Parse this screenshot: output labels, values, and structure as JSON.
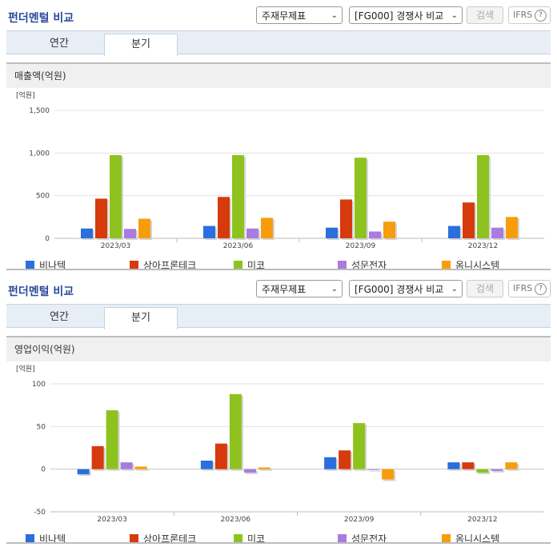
{
  "panels": [
    {
      "title": "펀더멘털 비교",
      "select1": "주재무제표",
      "select2": "[FG000] 경쟁사 비교",
      "search_btn": "검색",
      "ifrs": "IFRS",
      "ifrs_help": "?",
      "tabs": [
        "연간",
        "분기"
      ],
      "active_tab": 1,
      "metric_title": "매출액(억원)"
    },
    {
      "title": "펀더멘털 비교",
      "select1": "주재무제표",
      "select2": "[FG000] 경쟁사 비교",
      "search_btn": "검색",
      "ifrs": "IFRS",
      "ifrs_help": "?",
      "tabs": [
        "연간",
        "분기"
      ],
      "active_tab": 1,
      "metric_title": "영업이익(억원)"
    }
  ],
  "chart_data": [
    {
      "type": "bar",
      "unit_label": "[억원]",
      "categories": [
        "2023/03",
        "2023/06",
        "2023/09",
        "2023/12"
      ],
      "ylim": [
        0,
        1500
      ],
      "yticks": [
        0,
        500,
        1000,
        1500
      ],
      "ytick_labels": [
        "0",
        "500",
        "1,000",
        "1,500"
      ],
      "grid": true,
      "legend_position": "bottom",
      "series": [
        {
          "name": "비나텍",
          "color": "#2a6fdb",
          "values": [
            115,
            145,
            125,
            145
          ]
        },
        {
          "name": "상아프론테크",
          "color": "#d73a0c",
          "values": [
            465,
            485,
            455,
            420
          ]
        },
        {
          "name": "미코",
          "color": "#8ec31f",
          "values": [
            975,
            975,
            945,
            975
          ]
        },
        {
          "name": "성문전자",
          "color": "#a97be0",
          "values": [
            110,
            115,
            80,
            125
          ]
        },
        {
          "name": "옴니시스템",
          "color": "#f79d0c",
          "values": [
            230,
            240,
            195,
            250
          ]
        }
      ]
    },
    {
      "type": "bar",
      "unit_label": "[억원]",
      "categories": [
        "2023/03",
        "2023/06",
        "2023/09",
        "2023/12"
      ],
      "ylim": [
        -50,
        100
      ],
      "yticks": [
        -50,
        0,
        50,
        100
      ],
      "ytick_labels": [
        "-50",
        "0",
        "50",
        "100"
      ],
      "grid": true,
      "legend_position": "bottom",
      "series": [
        {
          "name": "비나텍",
          "color": "#2a6fdb",
          "values": [
            -6,
            10,
            14,
            8
          ]
        },
        {
          "name": "상아프론테크",
          "color": "#d73a0c",
          "values": [
            27,
            30,
            22,
            8
          ]
        },
        {
          "name": "미코",
          "color": "#8ec31f",
          "values": [
            69,
            88,
            54,
            -4
          ]
        },
        {
          "name": "성문전자",
          "color": "#a97be0",
          "values": [
            8,
            -4,
            0,
            -2
          ]
        },
        {
          "name": "옴니시스템",
          "color": "#f79d0c",
          "values": [
            3,
            2,
            -12,
            8
          ]
        }
      ]
    }
  ]
}
